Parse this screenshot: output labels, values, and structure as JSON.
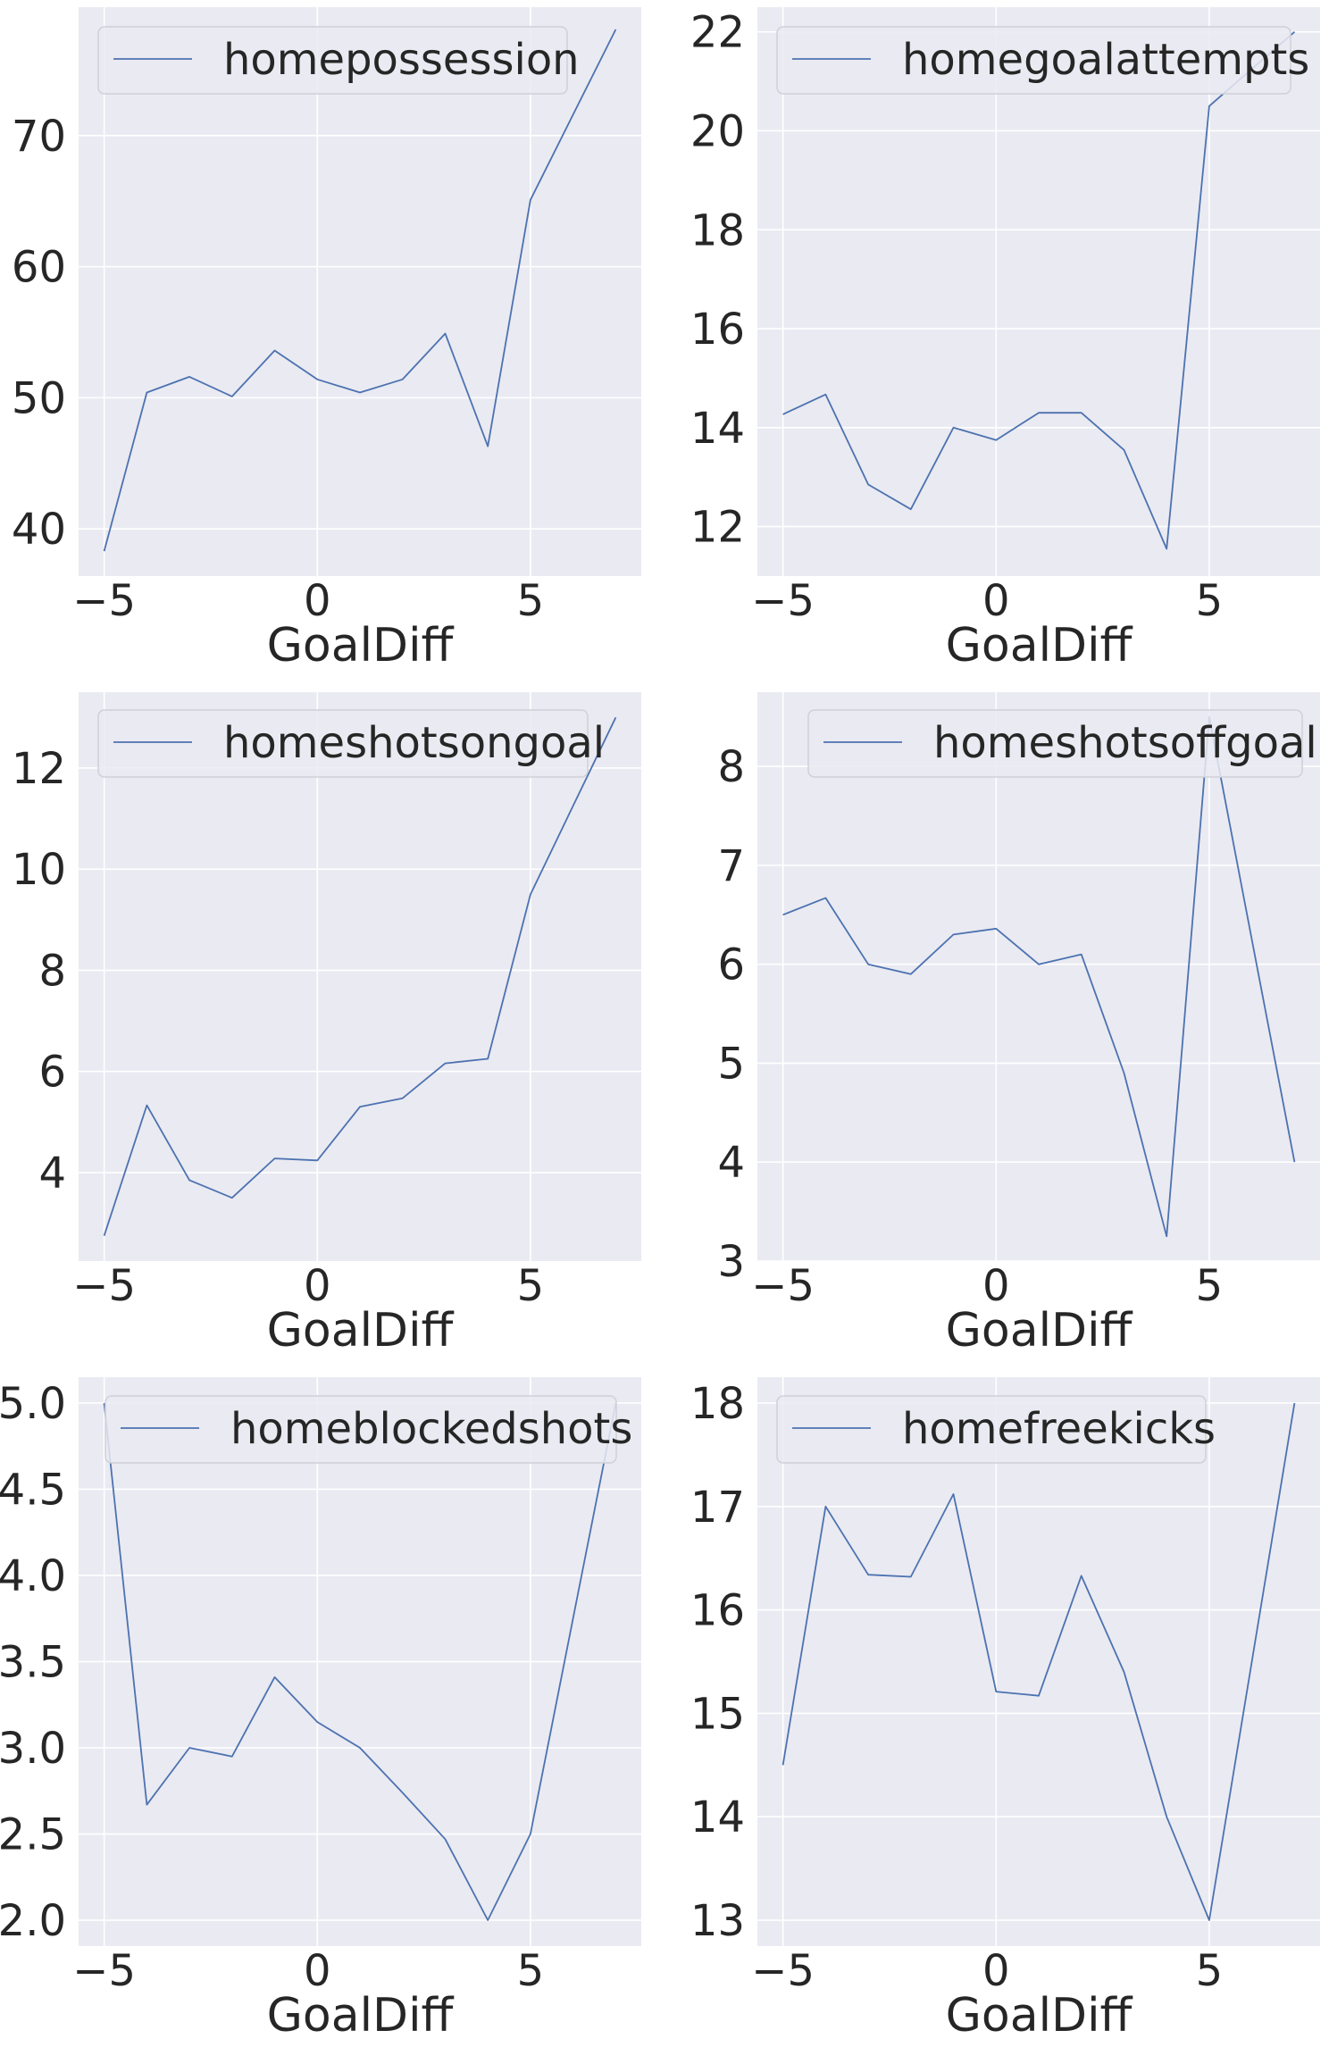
{
  "colors": {
    "panel_bg": "#eaeaf2",
    "grid": "#ffffff",
    "line": "#4c72b0",
    "text": "#262626"
  },
  "chart_data": [
    {
      "type": "line",
      "title": "",
      "xlabel": "GoalDiff",
      "ylabel": "",
      "xlim": [
        -5.6,
        7.6
      ],
      "ylim": [
        36.4,
        79.8
      ],
      "xticks": [
        "−5",
        "0",
        "5"
      ],
      "yticks": [
        "40",
        "50",
        "60",
        "70"
      ],
      "legend_position": "top-left",
      "grid": true,
      "series": [
        {
          "name": "homepossession",
          "x": [
            -5,
            -4,
            -3,
            -2,
            -1,
            0,
            1,
            2,
            3,
            4,
            5,
            6,
            7
          ],
          "y": [
            38.3,
            50.4,
            51.6,
            50.1,
            53.6,
            51.4,
            50.4,
            51.4,
            54.9,
            46.3,
            65.1,
            71.6,
            78.1
          ]
        }
      ]
    },
    {
      "type": "line",
      "title": "",
      "xlabel": "GoalDiff",
      "ylabel": "",
      "xlim": [
        -5.6,
        7.6
      ],
      "ylim": [
        11.0,
        22.5
      ],
      "xticks": [
        "−5",
        "0",
        "5"
      ],
      "yticks": [
        "12",
        "14",
        "16",
        "18",
        "20",
        "22"
      ],
      "legend_position": "top-left",
      "grid": true,
      "series": [
        {
          "name": "homegoalattempts",
          "x": [
            -5,
            -4,
            -3,
            -2,
            -1,
            0,
            1,
            2,
            3,
            4,
            5,
            6,
            7
          ],
          "y": [
            14.27,
            14.67,
            12.85,
            12.35,
            14.0,
            13.75,
            14.3,
            14.3,
            13.55,
            11.55,
            20.5,
            21.25,
            22.0
          ]
        }
      ]
    },
    {
      "type": "line",
      "title": "",
      "xlabel": "GoalDiff",
      "ylabel": "",
      "xlim": [
        -5.6,
        7.6
      ],
      "ylim": [
        2.25,
        13.5
      ],
      "xticks": [
        "−5",
        "0",
        "5"
      ],
      "yticks": [
        "4",
        "6",
        "8",
        "10",
        "12"
      ],
      "legend_position": "top-left",
      "grid": true,
      "series": [
        {
          "name": "homeshotsongoal",
          "x": [
            -5,
            -4,
            -3,
            -2,
            -1,
            0,
            1,
            2,
            3,
            4,
            5,
            6,
            7
          ],
          "y": [
            2.75,
            5.33,
            3.85,
            3.5,
            4.28,
            4.24,
            5.3,
            5.47,
            6.16,
            6.25,
            9.5,
            11.25,
            13.0
          ]
        }
      ]
    },
    {
      "type": "line",
      "title": "",
      "xlabel": "GoalDiff",
      "ylabel": "",
      "xlim": [
        -5.6,
        7.6
      ],
      "ylim": [
        3.0,
        8.75
      ],
      "xticks": [
        "−5",
        "0",
        "5"
      ],
      "yticks": [
        "3",
        "4",
        "5",
        "6",
        "7",
        "8"
      ],
      "legend_position": "top-right",
      "grid": true,
      "series": [
        {
          "name": "homeshotsoffgoal",
          "x": [
            -5,
            -4,
            -3,
            -2,
            -1,
            0,
            1,
            2,
            3,
            4,
            5,
            6,
            7
          ],
          "y": [
            6.5,
            6.67,
            6.0,
            5.9,
            6.3,
            6.36,
            6.0,
            6.1,
            4.9,
            3.25,
            8.5,
            6.25,
            4.0
          ]
        }
      ]
    },
    {
      "type": "line",
      "title": "",
      "xlabel": "GoalDiff",
      "ylabel": "",
      "xlim": [
        -5.6,
        7.6
      ],
      "ylim": [
        1.85,
        5.15
      ],
      "xticks": [
        "−5",
        "0",
        "5"
      ],
      "yticks": [
        "2.0",
        "2.5",
        "3.0",
        "3.5",
        "4.0",
        "4.5",
        "5.0"
      ],
      "legend_position": "top-center",
      "grid": true,
      "series": [
        {
          "name": "homeblockedshots",
          "x": [
            -5,
            -4,
            -3,
            -2,
            -1,
            0,
            1,
            2,
            3,
            4,
            5,
            6,
            7
          ],
          "y": [
            5.0,
            2.67,
            3.0,
            2.95,
            3.41,
            3.15,
            3.0,
            2.74,
            2.47,
            2.0,
            2.5,
            3.75,
            5.0
          ]
        }
      ]
    },
    {
      "type": "line",
      "title": "",
      "xlabel": "GoalDiff",
      "ylabel": "",
      "xlim": [
        -5.6,
        7.6
      ],
      "ylim": [
        12.75,
        18.25
      ],
      "xticks": [
        "−5",
        "0",
        "5"
      ],
      "yticks": [
        "13",
        "14",
        "15",
        "16",
        "17",
        "18"
      ],
      "legend_position": "top-left",
      "grid": true,
      "series": [
        {
          "name": "homefreekicks",
          "x": [
            -5,
            -4,
            -3,
            -2,
            -1,
            0,
            1,
            2,
            3,
            4,
            5,
            6,
            7
          ],
          "y": [
            14.5,
            17.0,
            16.34,
            16.32,
            17.12,
            15.21,
            15.17,
            16.33,
            15.4,
            14.0,
            13.0,
            15.5,
            18.0
          ]
        }
      ]
    }
  ]
}
